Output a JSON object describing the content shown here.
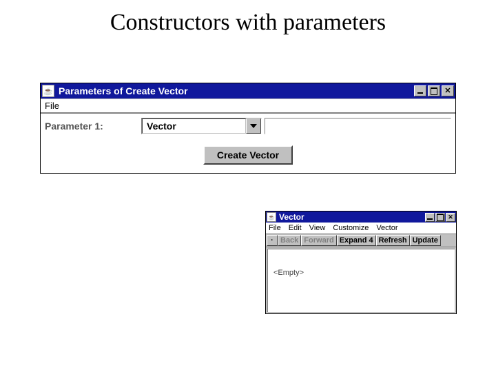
{
  "slide": {
    "title": "Constructors with parameters"
  },
  "win1": {
    "title": "Parameters of Create  Vector",
    "menu": {
      "file": "File"
    },
    "param_label": "Parameter 1:",
    "combo_value": "Vector",
    "create_btn": "Create Vector"
  },
  "win2": {
    "title": "Vector",
    "menu": {
      "file": "File",
      "edit": "Edit",
      "view": "View",
      "customize": "Customize",
      "vector": "Vector"
    },
    "toolbar": {
      "back": "Back",
      "forward": "Forward",
      "expand": "Expand 4",
      "refresh": "Refresh",
      "update": "Update"
    },
    "content": "<Empty>"
  },
  "colors": {
    "titlebar": "#10189c",
    "face": "#c0c0c0",
    "shadow": "#404040",
    "highlight": "#ffffff",
    "disabled_text": "#808080"
  }
}
